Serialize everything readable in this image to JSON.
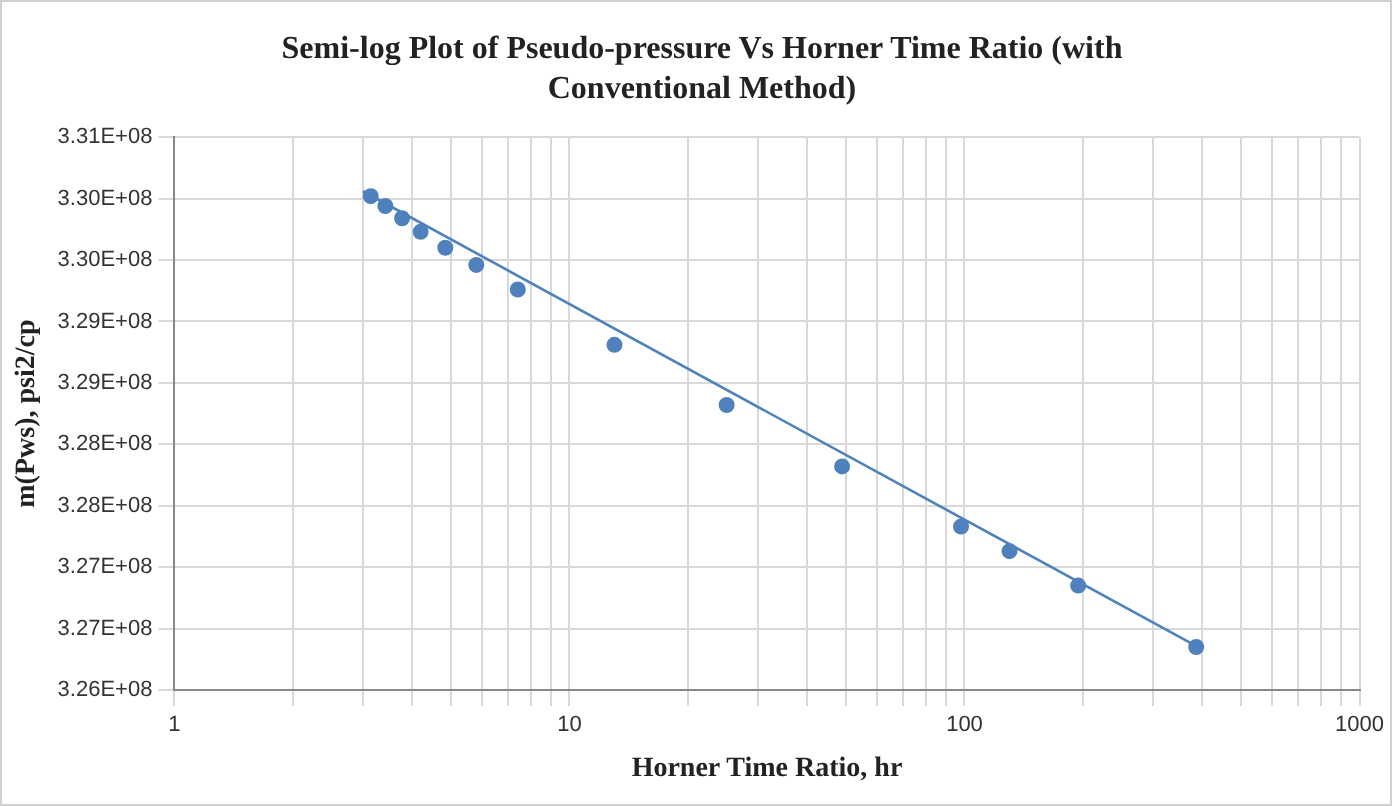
{
  "chart_data": {
    "type": "scatter",
    "title": "Semi-log Plot of Pseudo-pressure Vs Horner Time Ratio (with Conventional Method)",
    "xlabel": "Horner Time Ratio, hr",
    "ylabel": "m(Pws), psi2/cp",
    "log": "x",
    "grid": true,
    "legend": false,
    "marker": "circle",
    "xlim": [
      1,
      1000
    ],
    "xticks": [
      1,
      {
        "value": 2,
        "label": null
      },
      {
        "value": 3,
        "label": null
      },
      {
        "value": 4,
        "label": null
      },
      {
        "value": 5,
        "label": null
      },
      {
        "value": 6,
        "label": null
      },
      {
        "value": 7,
        "label": null
      },
      {
        "value": 8,
        "label": null
      },
      {
        "value": 9,
        "label": null
      },
      10,
      {
        "value": 20,
        "label": null
      },
      {
        "value": 30,
        "label": null
      },
      {
        "value": 40,
        "label": null
      },
      {
        "value": 50,
        "label": null
      },
      {
        "value": 60,
        "label": null
      },
      {
        "value": 70,
        "label": null
      },
      {
        "value": 80,
        "label": null
      },
      {
        "value": 90,
        "label": null
      },
      100,
      {
        "value": 200,
        "label": null
      },
      {
        "value": 300,
        "label": null
      },
      {
        "value": 400,
        "label": null
      },
      {
        "value": 500,
        "label": null
      },
      {
        "value": 600,
        "label": null
      },
      {
        "value": 700,
        "label": null
      },
      {
        "value": 800,
        "label": null
      },
      {
        "value": 900,
        "label": null
      },
      1000
    ],
    "ylim": [
      326000000,
      330500000
    ],
    "yticks": [
      {
        "value": 326000000,
        "label": "3.26E+08"
      },
      {
        "value": 326500000,
        "label": "3.27E+08"
      },
      {
        "value": 327000000,
        "label": "3.27E+08"
      },
      {
        "value": 327500000,
        "label": "3.28E+08"
      },
      {
        "value": 328000000,
        "label": "3.28E+08"
      },
      {
        "value": 328500000,
        "label": "3.29E+08"
      },
      {
        "value": 329000000,
        "label": "3.29E+08"
      },
      {
        "value": 329500000,
        "label": "3.30E+08"
      },
      {
        "value": 330000000,
        "label": "3.30E+08"
      },
      {
        "value": 330500000,
        "label": "3.31E+08"
      }
    ],
    "series": [
      {
        "type": "scatter",
        "color": "#4f81bd",
        "x": [
          3.14,
          3.42,
          3.77,
          4.2,
          4.85,
          5.81,
          7.4,
          13,
          25,
          49,
          98,
          130,
          194,
          386
        ],
        "values": [
          330020000,
          329940000,
          329840000,
          329730000,
          329600000,
          329460000,
          329260000,
          328810000,
          328320000,
          327820000,
          327330000,
          327130000,
          326850000,
          326350000
        ]
      },
      {
        "type": "line",
        "color": "#4f81bd",
        "marker": "none",
        "x": [
          3,
          400
        ],
        "values": [
          330060000,
          326330000
        ]
      }
    ]
  }
}
